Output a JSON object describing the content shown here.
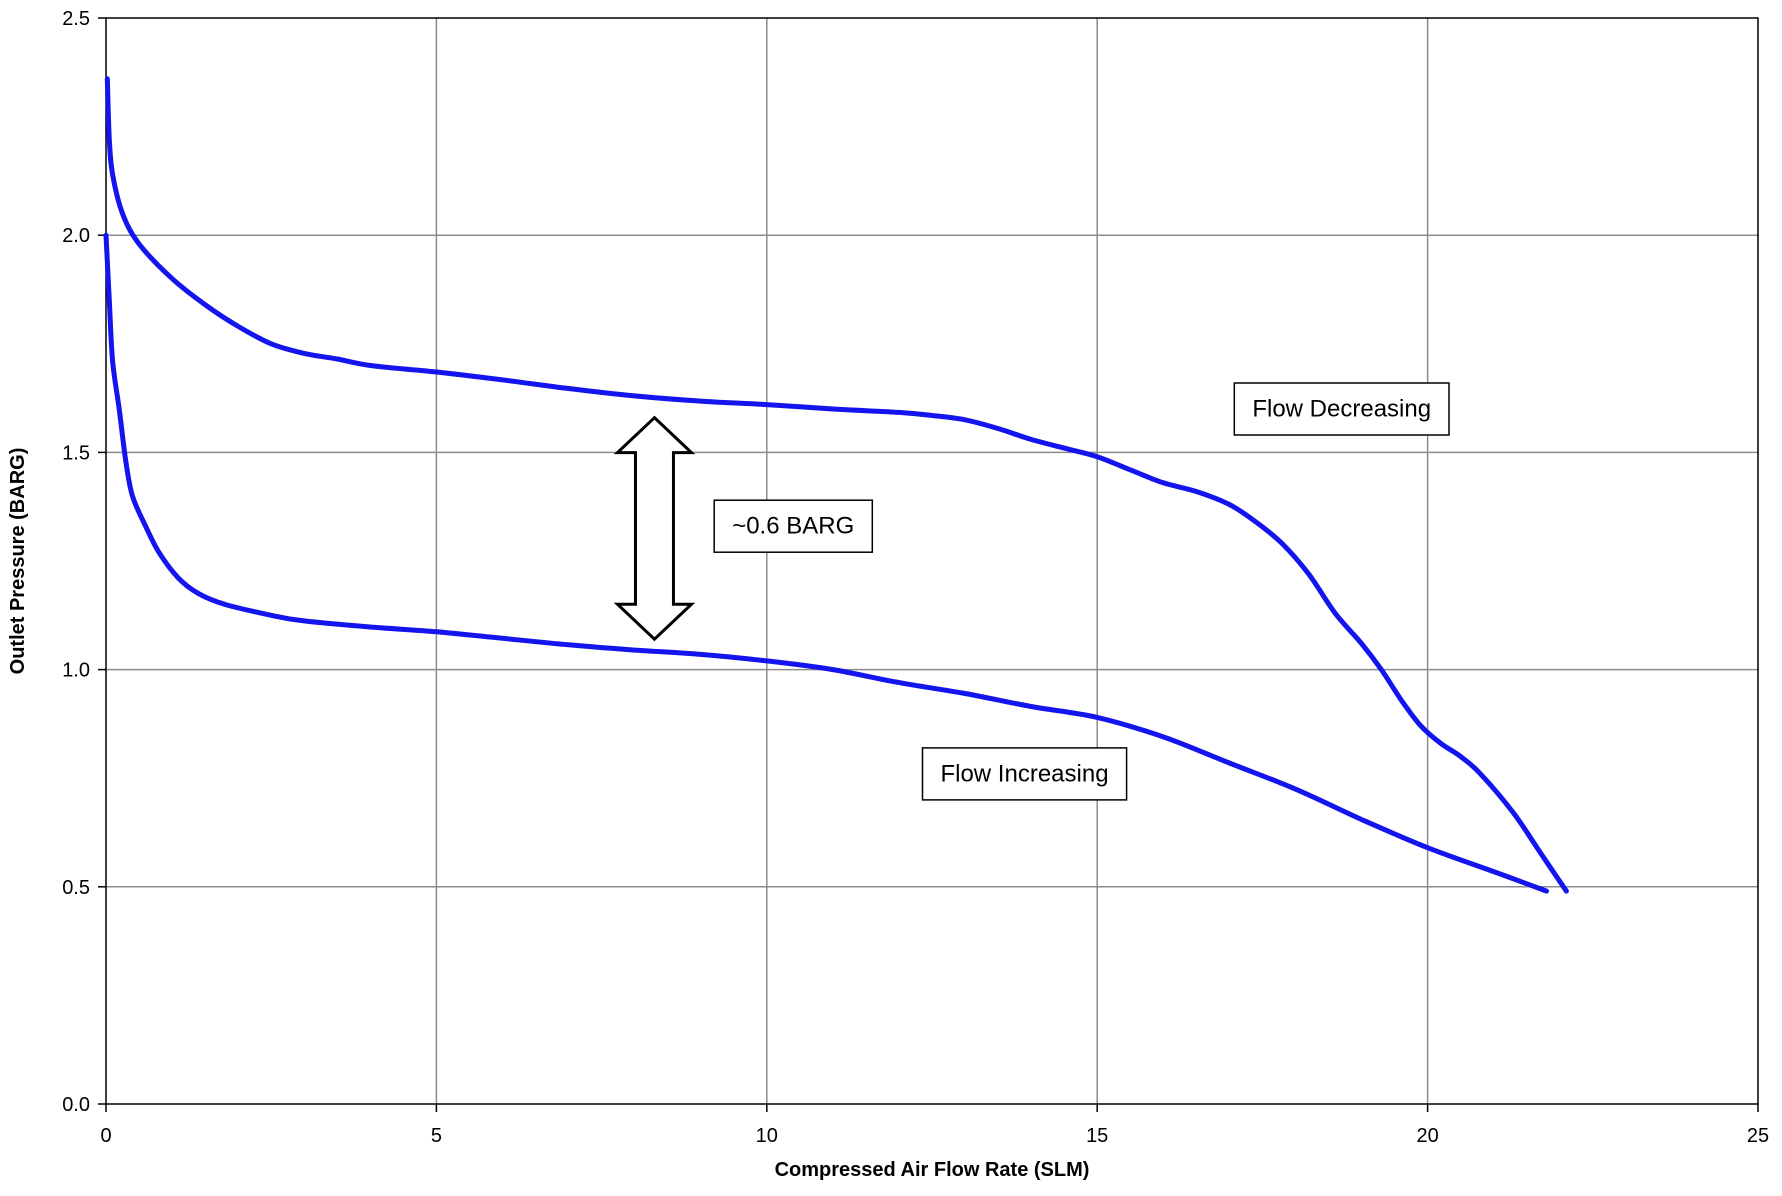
{
  "chart_data": {
    "type": "line",
    "xlabel": "Compressed Air Flow Rate (SLM)",
    "ylabel": "Outlet Pressure (BARG)",
    "xlim": [
      0,
      25
    ],
    "ylim": [
      0,
      2.5
    ],
    "x_ticks": [
      "0",
      "5",
      "10",
      "15",
      "20",
      "25"
    ],
    "y_ticks": [
      "0.0",
      "0.5",
      "1.0",
      "1.5",
      "2.0",
      "2.5"
    ],
    "grid": true,
    "series_color": "#1414ee",
    "series": [
      {
        "name": "Flow Decreasing",
        "points": [
          [
            22.1,
            0.49
          ],
          [
            21.7,
            0.58
          ],
          [
            21.3,
            0.67
          ],
          [
            20.8,
            0.76
          ],
          [
            20.5,
            0.8
          ],
          [
            20.2,
            0.83
          ],
          [
            19.9,
            0.87
          ],
          [
            19.6,
            0.93
          ],
          [
            19.3,
            1.0
          ],
          [
            19.0,
            1.06
          ],
          [
            18.6,
            1.13
          ],
          [
            18.2,
            1.22
          ],
          [
            17.8,
            1.29
          ],
          [
            17.4,
            1.34
          ],
          [
            17.0,
            1.38
          ],
          [
            16.5,
            1.41
          ],
          [
            16.0,
            1.43
          ],
          [
            15.5,
            1.46
          ],
          [
            15.0,
            1.49
          ],
          [
            14.5,
            1.51
          ],
          [
            14.0,
            1.53
          ],
          [
            13.5,
            1.555
          ],
          [
            13.0,
            1.575
          ],
          [
            12.5,
            1.585
          ],
          [
            12.0,
            1.592
          ],
          [
            11.0,
            1.6
          ],
          [
            10.0,
            1.61
          ],
          [
            9.0,
            1.618
          ],
          [
            8.0,
            1.63
          ],
          [
            7.0,
            1.647
          ],
          [
            6.0,
            1.667
          ],
          [
            5.0,
            1.685
          ],
          [
            4.0,
            1.7
          ],
          [
            3.5,
            1.715
          ],
          [
            3.0,
            1.728
          ],
          [
            2.5,
            1.75
          ],
          [
            2.0,
            1.79
          ],
          [
            1.5,
            1.84
          ],
          [
            1.0,
            1.9
          ],
          [
            0.5,
            1.98
          ],
          [
            0.25,
            2.05
          ],
          [
            0.1,
            2.14
          ],
          [
            0.05,
            2.22
          ],
          [
            0.02,
            2.36
          ]
        ]
      },
      {
        "name": "Flow Increasing",
        "points": [
          [
            0.0,
            2.0
          ],
          [
            0.05,
            1.85
          ],
          [
            0.1,
            1.71
          ],
          [
            0.2,
            1.6
          ],
          [
            0.3,
            1.48
          ],
          [
            0.4,
            1.4
          ],
          [
            0.6,
            1.33
          ],
          [
            0.8,
            1.27
          ],
          [
            1.1,
            1.21
          ],
          [
            1.4,
            1.175
          ],
          [
            1.8,
            1.15
          ],
          [
            2.5,
            1.125
          ],
          [
            3.0,
            1.112
          ],
          [
            4.0,
            1.098
          ],
          [
            5.0,
            1.087
          ],
          [
            6.0,
            1.072
          ],
          [
            7.0,
            1.057
          ],
          [
            8.0,
            1.045
          ],
          [
            9.0,
            1.035
          ],
          [
            10.0,
            1.02
          ],
          [
            11.0,
            1.0
          ],
          [
            12.0,
            0.97
          ],
          [
            13.0,
            0.945
          ],
          [
            14.0,
            0.915
          ],
          [
            15.0,
            0.89
          ],
          [
            16.0,
            0.845
          ],
          [
            17.0,
            0.785
          ],
          [
            18.0,
            0.725
          ],
          [
            19.0,
            0.655
          ],
          [
            20.0,
            0.59
          ],
          [
            21.0,
            0.535
          ],
          [
            21.8,
            0.49
          ]
        ]
      }
    ],
    "annotations": [
      {
        "text": "Flow Decreasing",
        "x": 18.7,
        "y": 1.6
      },
      {
        "text": "Flow Increasing",
        "x": 13.9,
        "y": 0.76
      },
      {
        "text": "~0.6 BARG",
        "x": 10.4,
        "y": 1.33
      }
    ],
    "double_arrow": {
      "x": 8.3,
      "y_top": 1.58,
      "y_bottom": 1.07,
      "label": "~0.6 BARG"
    }
  }
}
